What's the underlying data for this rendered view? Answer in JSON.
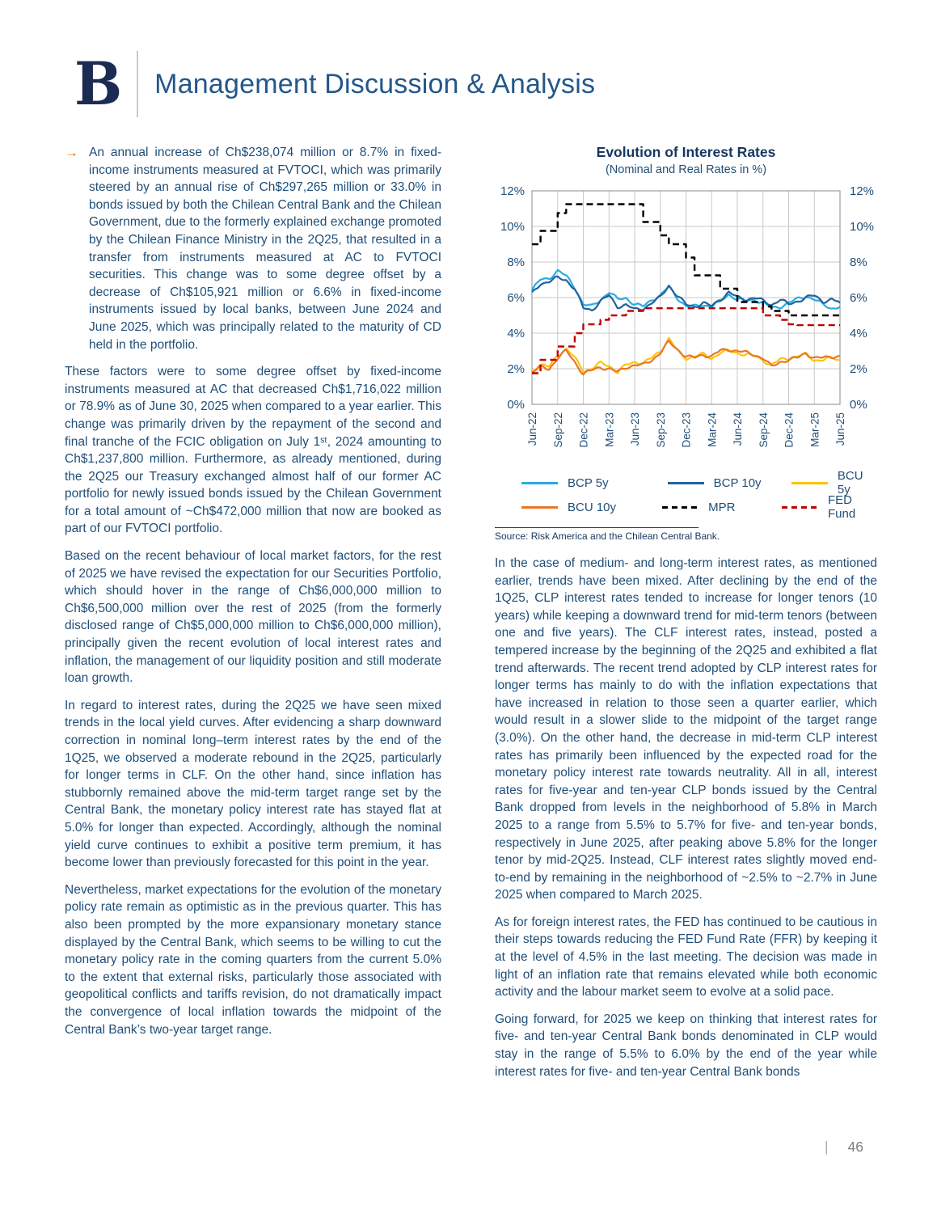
{
  "page": {
    "logo_letter": "B",
    "title": "Management Discussion & Analysis",
    "footer_divider": "|",
    "page_number": "46"
  },
  "left_column": {
    "bullet": {
      "marker": "→",
      "text": "An annual increase of Ch$238,074 million or 8.7% in fixed-income instruments measured at FVTOCI, which was primarily steered by an annual rise of Ch$297,265 million or 33.0% in bonds issued by both the Chilean Central Bank and the Chilean Government, due to the formerly explained exchange promoted by the Chilean Finance Ministry in the 2Q25, that resulted in a transfer from instruments measured at AC to FVTOCI securities. This change was to some degree offset by a decrease of Ch$105,921 million or 6.6% in fixed-income instruments issued by local banks, between June 2024 and June 2025, which was principally related to the maturity of CD held in the portfolio."
    },
    "paragraphs": [
      "These factors were to some degree offset by fixed-income instruments measured at AC that decreased Ch$1,716,022 million or 78.9% as of June 30, 2025 when compared to a year earlier. This change was primarily driven by the repayment of the second and final tranche of the FCIC obligation on July 1ˢᵗ, 2024 amounting to Ch$1,237,800 million. Furthermore, as already mentioned, during the 2Q25 our Treasury exchanged almost half of our former AC portfolio for newly issued bonds issued by the Chilean Government for a total amount of ~Ch$472,000 million that now are booked as part of our FVTOCI portfolio.",
      "Based on the recent behaviour of local market factors, for the rest of 2025 we have revised the expectation for our Securities Portfolio, which should hover in the range of Ch$6,000,000 million to Ch$6,500,000 million over the rest of 2025 (from the formerly disclosed range of Ch$5,000,000 million to Ch$6,000,000 million), principally given the recent evolution of local interest rates and inflation, the management of our liquidity position and still moderate loan growth.",
      "In regard to interest rates, during the 2Q25 we have seen mixed trends in the local yield curves. After evidencing a sharp downward correction in nominal long–term interest rates by the end of the 1Q25, we observed a moderate rebound in the 2Q25, particularly for longer terms in CLF. On the other hand, since inflation has stubbornly remained above the mid-term target range set by the Central Bank, the monetary policy interest rate has stayed flat at 5.0% for longer than expected. Accordingly, although the nominal yield curve continues to exhibit a positive term premium, it has become lower than previously forecasted for this point in the year.",
      "Nevertheless, market expectations for the evolution of the monetary policy rate remain as optimistic as in the previous quarter. This has also been prompted by the more expansionary monetary stance displayed by the Central Bank, which seems to be willing to cut the monetary policy rate in the coming quarters from the current 5.0% to the extent that external risks, particularly those associated with geopolitical conflicts and tariffs revision, do not dramatically impact the convergence of local inflation towards the midpoint of the Central Bank’s two-year target range."
    ]
  },
  "right_column": {
    "paragraphs": [
      "In the case of medium- and long-term interest rates, as mentioned earlier, trends have been mixed. After declining by the end of the 1Q25, CLP interest rates tended to increase for longer tenors (10 years) while keeping a downward trend for mid-term tenors (between one and five years). The CLF interest rates, instead, posted a tempered increase by the beginning of the 2Q25 and exhibited a flat trend afterwards. The recent trend adopted by CLP interest rates for longer terms has mainly to do with the inflation expectations that have increased in relation to those seen a quarter earlier, which would result in a slower slide to the midpoint of the target range (3.0%). On the other hand, the decrease in mid-term CLP interest rates has primarily been influenced by the expected road for the monetary policy interest rate towards neutrality. All in all, interest rates for five-year and ten-year CLP bonds issued by the Central Bank dropped from levels in the neighborhood of 5.8% in March 2025 to a range from 5.5% to 5.7% for five- and ten-year bonds, respectively in June 2025, after peaking above 5.8% for the longer tenor by mid-2Q25. Instead, CLF interest rates slightly moved end-to-end by remaining in the neighborhood of ~2.5% to ~2.7% in June 2025 when compared to March 2025.",
      "As for foreign interest rates, the FED has continued to be cautious in their steps towards reducing the FED Fund Rate (FFR) by keeping it at the level of 4.5% in the last meeting. The decision was made in light of an inflation rate that remains elevated while both economic activity and the labour market seem to evolve at a solid pace.",
      "Going forward, for 2025 we keep on thinking that interest rates for five- and ten-year Central Bank bonds denominated in CLP would stay in the range of 5.5% to 6.0% by the end of the year while interest rates for five- and ten-year Central Bank bonds"
    ]
  },
  "chart_data": {
    "type": "line",
    "title": "Evolution of Interest Rates",
    "subtitle": "(Nominal and Real Rates in %)",
    "source": "Source: Risk America and the Chilean Central Bank.",
    "ylabel": "",
    "xlabel": "",
    "ylim": [
      0,
      12
    ],
    "ytick_step": 2,
    "ytick_suffix": "%",
    "grid": true,
    "legend_position": "bottom",
    "axis_label_color": "#1F4E79",
    "x_monthly_count": 37,
    "x_tick_labels": [
      "Jun-22",
      "Sep-22",
      "Dec-22",
      "Mar-23",
      "Jun-23",
      "Sep-23",
      "Dec-23",
      "Mar-24",
      "Jun-24",
      "Sep-24",
      "Dec-24",
      "Mar-25",
      "Jun-25"
    ],
    "series": [
      {
        "name": "BCP 5y",
        "color": "#29ABE2",
        "style": "solid",
        "interp": "linear",
        "values": [
          6.4,
          7.0,
          7.1,
          7.5,
          7.2,
          6.6,
          5.6,
          5.5,
          5.9,
          6.3,
          5.9,
          6.0,
          5.6,
          5.5,
          5.9,
          6.1,
          6.6,
          6.0,
          5.5,
          5.5,
          5.6,
          5.5,
          5.8,
          6.2,
          5.9,
          5.8,
          5.9,
          5.7,
          5.4,
          5.5,
          5.7,
          5.9,
          6.1,
          5.9,
          5.6,
          5.4,
          5.5
        ]
      },
      {
        "name": "BCP 10y",
        "color": "#1F639E",
        "style": "solid",
        "interp": "linear",
        "values": [
          6.2,
          6.8,
          6.9,
          7.1,
          7.0,
          6.5,
          5.4,
          5.3,
          5.8,
          6.1,
          5.5,
          5.6,
          5.3,
          5.4,
          5.7,
          6.0,
          6.7,
          6.1,
          5.6,
          5.5,
          5.7,
          5.5,
          5.9,
          6.3,
          6.0,
          5.9,
          6.0,
          5.8,
          5.6,
          5.9,
          5.6,
          5.8,
          6.0,
          6.1,
          5.8,
          5.9,
          5.7
        ]
      },
      {
        "name": "BCU 5y",
        "color": "#FFC20E",
        "style": "solid",
        "interp": "linear",
        "values": [
          1.9,
          2.2,
          2.1,
          2.8,
          3.1,
          2.6,
          1.9,
          2.0,
          2.3,
          2.2,
          1.8,
          2.2,
          2.4,
          2.3,
          2.6,
          3.0,
          3.7,
          3.0,
          2.6,
          2.7,
          2.8,
          2.6,
          2.9,
          3.0,
          2.9,
          2.8,
          2.7,
          2.5,
          2.2,
          2.5,
          2.6,
          2.7,
          2.8,
          2.5,
          2.5,
          2.6,
          2.5
        ]
      },
      {
        "name": "BCU 10y",
        "color": "#E87722",
        "style": "solid",
        "interp": "linear",
        "values": [
          1.8,
          2.1,
          2.0,
          2.6,
          3.0,
          2.4,
          1.7,
          1.9,
          2.1,
          2.0,
          1.8,
          2.1,
          2.2,
          2.2,
          2.5,
          2.9,
          3.5,
          3.1,
          2.7,
          2.6,
          2.8,
          2.7,
          3.0,
          3.1,
          3.0,
          2.9,
          2.8,
          2.6,
          2.1,
          2.4,
          2.5,
          2.6,
          2.9,
          2.6,
          2.6,
          2.7,
          2.7
        ]
      },
      {
        "name": "MPR",
        "color": "#000000",
        "style": "dashed",
        "interp": "step",
        "values": [
          9.0,
          9.75,
          9.75,
          10.75,
          11.25,
          11.25,
          11.25,
          11.25,
          11.25,
          11.25,
          11.25,
          11.25,
          11.25,
          10.25,
          10.25,
          9.5,
          9.0,
          9.0,
          8.25,
          7.25,
          7.25,
          7.25,
          6.5,
          6.5,
          5.75,
          5.75,
          5.75,
          5.5,
          5.25,
          5.25,
          5.0,
          5.0,
          5.0,
          5.0,
          5.0,
          5.0,
          5.0
        ]
      },
      {
        "name": "FED Fund",
        "color": "#C00000",
        "style": "dashed",
        "interp": "step",
        "values": [
          1.75,
          2.5,
          2.5,
          3.25,
          3.25,
          4.0,
          4.5,
          4.5,
          4.75,
          5.0,
          5.0,
          5.25,
          5.25,
          5.4,
          5.4,
          5.4,
          5.4,
          5.4,
          5.4,
          5.4,
          5.4,
          5.4,
          5.4,
          5.4,
          5.4,
          5.4,
          5.4,
          5.0,
          5.0,
          4.75,
          4.5,
          4.45,
          4.45,
          4.45,
          4.45,
          4.45,
          4.45
        ]
      }
    ],
    "legend_order": [
      [
        "BCP 5y",
        "BCP 10y",
        "BCU 5y"
      ],
      [
        "BCU 10y",
        "MPR",
        "FED Fund"
      ]
    ]
  }
}
